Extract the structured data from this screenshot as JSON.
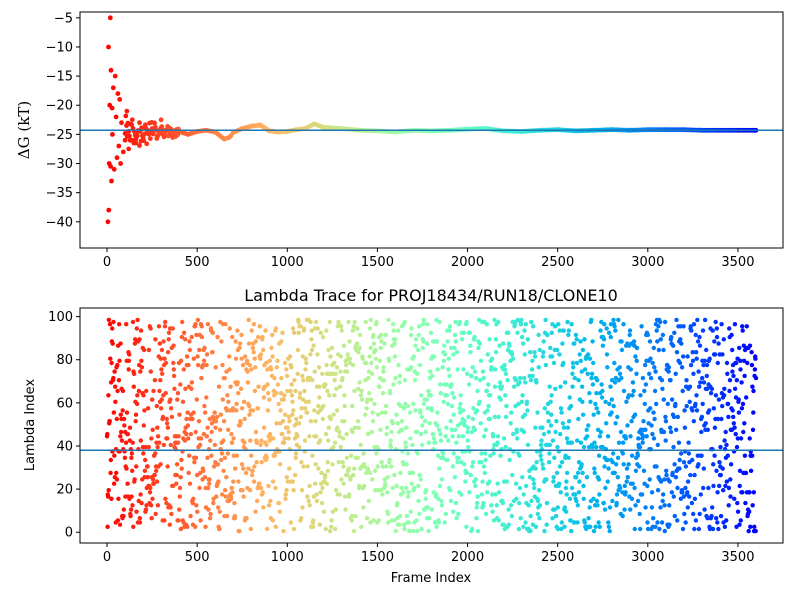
{
  "chart_data": [
    {
      "type": "scatter",
      "title": "",
      "xlabel": "",
      "ylabel": "ΔG (kT)",
      "xlim": [
        -150,
        3750
      ],
      "ylim": [
        -44.5,
        -4
      ],
      "xticks": [
        0,
        500,
        1000,
        1500,
        2000,
        2500,
        3000,
        3500
      ],
      "yticks": [
        -40,
        -35,
        -30,
        -25,
        -20,
        -15,
        -10,
        -5
      ],
      "xtick_labels": [
        "0",
        "500",
        "1000",
        "1500",
        "2000",
        "2500",
        "3000",
        "3500"
      ],
      "ytick_labels": [
        "−40",
        "−35",
        "−30",
        "−25",
        "−20",
        "−15",
        "−10",
        "−5"
      ],
      "hline": -24.3,
      "hline_color": "#1f77b4",
      "colormap": "rainbow (reversed: red at frame 0 → violet at frame 3600)",
      "n_frames": 3600,
      "series": [
        {
          "x": [
            5,
            8,
            10,
            12,
            15,
            18,
            20,
            22,
            25,
            28,
            30,
            35,
            40,
            45,
            50,
            55,
            60,
            65,
            70,
            75,
            80,
            90,
            100,
            110,
            120,
            140,
            160,
            180,
            200,
            250,
            300,
            350,
            400,
            450,
            500,
            550,
            600,
            650,
            680,
            700,
            750,
            800,
            850,
            900,
            950,
            1000,
            1050,
            1100,
            1150,
            1200,
            1300,
            1400,
            1500,
            1600,
            1700,
            1800,
            1900,
            2000,
            2100,
            2200,
            2300,
            2400,
            2500,
            2600,
            2700,
            2800,
            2900,
            3000,
            3100,
            3200,
            3300,
            3400,
            3500,
            3600
          ],
          "y": [
            -40,
            -10,
            -38,
            -30,
            -20,
            -5,
            -30.5,
            -14,
            -33,
            -20.5,
            -25,
            -17,
            -31,
            -15,
            -22,
            -29,
            -18,
            -27,
            -19,
            -30,
            -23,
            -28,
            -26,
            -21,
            -27.5,
            -22.5,
            -26.5,
            -23,
            -26,
            -24,
            -22.5,
            -25,
            -24.5,
            -25,
            -24.5,
            -24.3,
            -24.6,
            -25.8,
            -25.5,
            -24.7,
            -24,
            -23.6,
            -23.4,
            -24.4,
            -24.6,
            -24.5,
            -24.2,
            -24,
            -23.2,
            -23.8,
            -24,
            -24.3,
            -24.4,
            -24.6,
            -24.3,
            -24.4,
            -24.3,
            -24.1,
            -24.0,
            -24.4,
            -24.5,
            -24.3,
            -24.2,
            -24.4,
            -24.3,
            -24.2,
            -24.3,
            -24.2,
            -24.2,
            -24.2,
            -24.3,
            -24.3,
            -24.3,
            -24.3
          ]
        }
      ]
    },
    {
      "type": "scatter",
      "title": "Lambda Trace for PROJ18434/RUN18/CLONE10",
      "xlabel": "Frame Index",
      "ylabel": "Lambda Index",
      "xlim": [
        -150,
        3750
      ],
      "ylim": [
        -5,
        104
      ],
      "xticks": [
        0,
        500,
        1000,
        1500,
        2000,
        2500,
        3000,
        3500
      ],
      "yticks": [
        0,
        20,
        40,
        60,
        80,
        100
      ],
      "xtick_labels": [
        "0",
        "500",
        "1000",
        "1500",
        "2000",
        "2500",
        "3000",
        "3500"
      ],
      "ytick_labels": [
        "0",
        "20",
        "40",
        "60",
        "80",
        "100"
      ],
      "hline": 38,
      "hline_color": "#1f77b4",
      "colormap": "rainbow (reversed: red at frame 0 → violet at frame 3600)",
      "n_frames": 3600,
      "note_points": "dense random walk of lambda index 0–99 across all 3600 frames",
      "sample_x": [
        0,
        10,
        20,
        40,
        60,
        80,
        100,
        150,
        200,
        300,
        400,
        500,
        600,
        800,
        1000,
        1200,
        1500,
        1800,
        2000,
        2200,
        2500,
        2800,
        3000,
        3200,
        3500,
        3600
      ],
      "sample_y": [
        36,
        96,
        3,
        60,
        14,
        88,
        45,
        24,
        71,
        52,
        9,
        83,
        33,
        66,
        27,
        90,
        18,
        57,
        41,
        75,
        12,
        63,
        49,
        86,
        22,
        67
      ]
    }
  ]
}
